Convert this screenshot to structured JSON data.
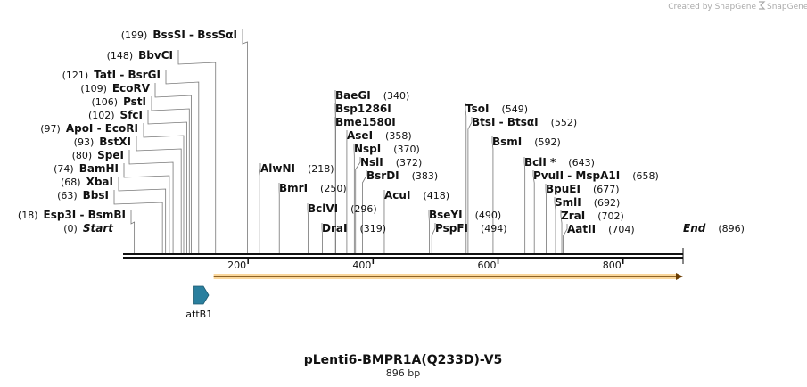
{
  "header": {
    "credit": "Created by SnapGene"
  },
  "map": {
    "title": "pLenti6-BMPR1A(Q233D)-V5",
    "length_label": "896 bp",
    "length": 896,
    "backbone_color": "#111111",
    "ticks": [
      {
        "value": 200,
        "label": "200"
      },
      {
        "value": 400,
        "label": "400"
      },
      {
        "value": 600,
        "label": "600"
      },
      {
        "value": 800,
        "label": "800"
      }
    ],
    "sites": [
      {
        "id": "start",
        "pos": 0,
        "pos_label": "(0)",
        "name": "Start",
        "terminal": true
      },
      {
        "id": "esp3i",
        "pos": 18,
        "pos_label": "(18)",
        "name": "Esp3I  -  BsmBI"
      },
      {
        "id": "bbsi",
        "pos": 63,
        "pos_label": "(63)",
        "name": "BbsI"
      },
      {
        "id": "xbai",
        "pos": 68,
        "pos_label": "(68)",
        "name": "XbaI"
      },
      {
        "id": "bamhi",
        "pos": 74,
        "pos_label": "(74)",
        "name": "BamHI"
      },
      {
        "id": "spei",
        "pos": 80,
        "pos_label": "(80)",
        "name": "SpeI"
      },
      {
        "id": "bstxi",
        "pos": 93,
        "pos_label": "(93)",
        "name": "BstXI"
      },
      {
        "id": "apoi",
        "pos": 97,
        "pos_label": "(97)",
        "name": "ApoI  -  EcoRI"
      },
      {
        "id": "sfci",
        "pos": 102,
        "pos_label": "(102)",
        "name": "SfcI"
      },
      {
        "id": "psti",
        "pos": 106,
        "pos_label": "(106)",
        "name": "PstI"
      },
      {
        "id": "ecorv",
        "pos": 109,
        "pos_label": "(109)",
        "name": "EcoRV"
      },
      {
        "id": "tati",
        "pos": 121,
        "pos_label": "(121)",
        "name": "TatI  -  BsrGI"
      },
      {
        "id": "bbvci",
        "pos": 148,
        "pos_label": "(148)",
        "name": "BbvCI"
      },
      {
        "id": "bsssi",
        "pos": 199,
        "pos_label": "(199)",
        "name": "BssSI  -  BssSαI"
      },
      {
        "id": "alwni",
        "pos": 218,
        "pos_label": "(218)",
        "name": "AlwNI"
      },
      {
        "id": "bmri",
        "pos": 250,
        "pos_label": "(250)",
        "name": "BmrI"
      },
      {
        "id": "bclvi",
        "pos": 296,
        "pos_label": "(296)",
        "name": "BclVI"
      },
      {
        "id": "drai",
        "pos": 319,
        "pos_label": "(319)",
        "name": "DraI"
      },
      {
        "id": "baegi",
        "pos": 340,
        "pos_label": "(340)",
        "name": "BaeGI"
      },
      {
        "id": "bsp1286i",
        "pos": 340,
        "pos_label": "",
        "name": "Bsp1286I"
      },
      {
        "id": "bme1580i",
        "pos": 340,
        "pos_label": "",
        "name": "Bme1580I"
      },
      {
        "id": "asei",
        "pos": 358,
        "pos_label": "(358)",
        "name": "AseI"
      },
      {
        "id": "nspi",
        "pos": 370,
        "pos_label": "(370)",
        "name": "NspI"
      },
      {
        "id": "nsli",
        "pos": 372,
        "pos_label": "(372)",
        "name": "NslI"
      },
      {
        "id": "bsrdi",
        "pos": 383,
        "pos_label": "(383)",
        "name": "BsrDI"
      },
      {
        "id": "acui",
        "pos": 418,
        "pos_label": "(418)",
        "name": "AcuI"
      },
      {
        "id": "bseyi",
        "pos": 490,
        "pos_label": "(490)",
        "name": "BseYI"
      },
      {
        "id": "pspfi",
        "pos": 494,
        "pos_label": "(494)",
        "name": "PspFI"
      },
      {
        "id": "tsoi",
        "pos": 549,
        "pos_label": "(549)",
        "name": "TsoI"
      },
      {
        "id": "btsi",
        "pos": 552,
        "pos_label": "(552)",
        "name": "BtsI  -  BtsαI"
      },
      {
        "id": "bsmi",
        "pos": 592,
        "pos_label": "(592)",
        "name": "BsmI"
      },
      {
        "id": "bcli",
        "pos": 643,
        "pos_label": "(643)",
        "name": "BclI *"
      },
      {
        "id": "pvuii",
        "pos": 658,
        "pos_label": "(658)",
        "name": "PvuII  -  MspA1I"
      },
      {
        "id": "bpuei",
        "pos": 677,
        "pos_label": "(677)",
        "name": "BpuEI"
      },
      {
        "id": "smli",
        "pos": 692,
        "pos_label": "(692)",
        "name": "SmlI"
      },
      {
        "id": "zrai",
        "pos": 702,
        "pos_label": "(702)",
        "name": "ZraI"
      },
      {
        "id": "aatii",
        "pos": 704,
        "pos_label": "(704)",
        "name": "AatII"
      },
      {
        "id": "end",
        "pos": 896,
        "pos_label": "(896)",
        "name": "End",
        "terminal": true
      }
    ],
    "features": [
      {
        "id": "orf",
        "type": "orf",
        "start": 145,
        "end": 896,
        "color": "#f5a623",
        "label": ""
      },
      {
        "id": "attb1",
        "type": "site",
        "start": 112,
        "end": 137,
        "color": "#2a7f9e",
        "label": "attB1"
      }
    ]
  }
}
